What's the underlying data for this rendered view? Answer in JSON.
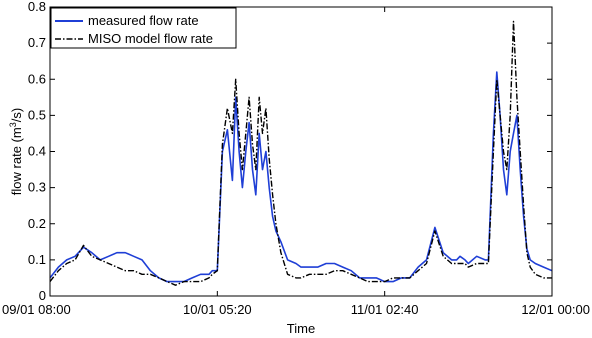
{
  "chart_data": {
    "type": "line",
    "xlabel": "Time",
    "ylabel": {
      "prefix": "flow rate (m",
      "sup": "3",
      "suffix": "/s)"
    },
    "x_tick_labels": [
      "09/01 08:00",
      "10/01 05:20",
      "11/01 02:40",
      "12/01 00:00"
    ],
    "x_tick_positions": [
      0,
      1,
      2,
      3
    ],
    "x_range": [
      0,
      3
    ],
    "y_tick_labels": [
      "0",
      "0.1",
      "0.2",
      "0.3",
      "0.4",
      "0.5",
      "0.6",
      "0.7",
      "0.8"
    ],
    "ylim": [
      0,
      0.8
    ],
    "grid": false,
    "legend_position": "top-left",
    "series": [
      {
        "name": "measured flow rate",
        "color": "#1f3fd6",
        "style": "solid",
        "x": [
          0,
          0.05,
          0.1,
          0.15,
          0.2,
          0.25,
          0.3,
          0.35,
          0.4,
          0.45,
          0.5,
          0.55,
          0.6,
          0.65,
          0.7,
          0.75,
          0.8,
          0.85,
          0.9,
          0.95,
          0.97,
          1.0,
          1.03,
          1.06,
          1.09,
          1.11,
          1.13,
          1.15,
          1.17,
          1.19,
          1.21,
          1.23,
          1.25,
          1.27,
          1.29,
          1.31,
          1.33,
          1.35,
          1.38,
          1.42,
          1.47,
          1.5,
          1.55,
          1.6,
          1.65,
          1.7,
          1.75,
          1.8,
          1.85,
          1.9,
          1.95,
          2.0,
          2.05,
          2.1,
          2.15,
          2.2,
          2.25,
          2.3,
          2.35,
          2.4,
          2.43,
          2.45,
          2.48,
          2.5,
          2.55,
          2.6,
          2.62,
          2.65,
          2.67,
          2.69,
          2.71,
          2.73,
          2.75,
          2.77,
          2.79,
          2.81,
          2.83,
          2.85,
          2.87,
          2.9,
          2.95,
          3.0
        ],
        "y": [
          0.05,
          0.08,
          0.1,
          0.11,
          0.135,
          0.12,
          0.1,
          0.11,
          0.12,
          0.12,
          0.11,
          0.1,
          0.07,
          0.05,
          0.04,
          0.04,
          0.04,
          0.05,
          0.06,
          0.06,
          0.07,
          0.07,
          0.4,
          0.46,
          0.32,
          0.55,
          0.4,
          0.3,
          0.4,
          0.48,
          0.35,
          0.28,
          0.45,
          0.35,
          0.4,
          0.3,
          0.22,
          0.18,
          0.15,
          0.1,
          0.09,
          0.08,
          0.08,
          0.08,
          0.09,
          0.09,
          0.08,
          0.07,
          0.05,
          0.05,
          0.05,
          0.04,
          0.04,
          0.05,
          0.05,
          0.08,
          0.1,
          0.19,
          0.12,
          0.1,
          0.1,
          0.11,
          0.1,
          0.09,
          0.11,
          0.1,
          0.1,
          0.45,
          0.62,
          0.5,
          0.35,
          0.28,
          0.4,
          0.45,
          0.5,
          0.35,
          0.22,
          0.13,
          0.1,
          0.09,
          0.08,
          0.07
        ]
      },
      {
        "name": "MISO model flow rate",
        "color": "#000000",
        "style": "dashdot",
        "x": [
          0,
          0.05,
          0.1,
          0.15,
          0.2,
          0.25,
          0.3,
          0.35,
          0.4,
          0.45,
          0.5,
          0.55,
          0.6,
          0.65,
          0.7,
          0.75,
          0.8,
          0.85,
          0.9,
          0.95,
          0.97,
          1.0,
          1.03,
          1.06,
          1.09,
          1.11,
          1.13,
          1.15,
          1.17,
          1.19,
          1.21,
          1.23,
          1.25,
          1.27,
          1.29,
          1.31,
          1.33,
          1.35,
          1.38,
          1.42,
          1.47,
          1.5,
          1.55,
          1.6,
          1.65,
          1.7,
          1.75,
          1.8,
          1.85,
          1.9,
          1.95,
          2.0,
          2.05,
          2.1,
          2.15,
          2.2,
          2.25,
          2.3,
          2.35,
          2.4,
          2.43,
          2.45,
          2.48,
          2.5,
          2.55,
          2.6,
          2.62,
          2.65,
          2.67,
          2.69,
          2.71,
          2.73,
          2.75,
          2.77,
          2.79,
          2.81,
          2.83,
          2.85,
          2.87,
          2.9,
          2.95,
          3.0
        ],
        "y": [
          0.04,
          0.07,
          0.09,
          0.1,
          0.14,
          0.11,
          0.1,
          0.09,
          0.08,
          0.07,
          0.07,
          0.06,
          0.06,
          0.05,
          0.04,
          0.03,
          0.04,
          0.04,
          0.04,
          0.05,
          0.06,
          0.07,
          0.42,
          0.52,
          0.45,
          0.6,
          0.45,
          0.35,
          0.45,
          0.55,
          0.42,
          0.35,
          0.55,
          0.45,
          0.52,
          0.38,
          0.28,
          0.2,
          0.12,
          0.06,
          0.05,
          0.05,
          0.06,
          0.06,
          0.06,
          0.07,
          0.07,
          0.06,
          0.05,
          0.04,
          0.04,
          0.04,
          0.05,
          0.05,
          0.05,
          0.07,
          0.09,
          0.18,
          0.11,
          0.09,
          0.09,
          0.09,
          0.09,
          0.08,
          0.09,
          0.09,
          0.09,
          0.4,
          0.6,
          0.5,
          0.4,
          0.35,
          0.5,
          0.76,
          0.55,
          0.4,
          0.25,
          0.12,
          0.08,
          0.06,
          0.05,
          0.05
        ]
      }
    ]
  }
}
